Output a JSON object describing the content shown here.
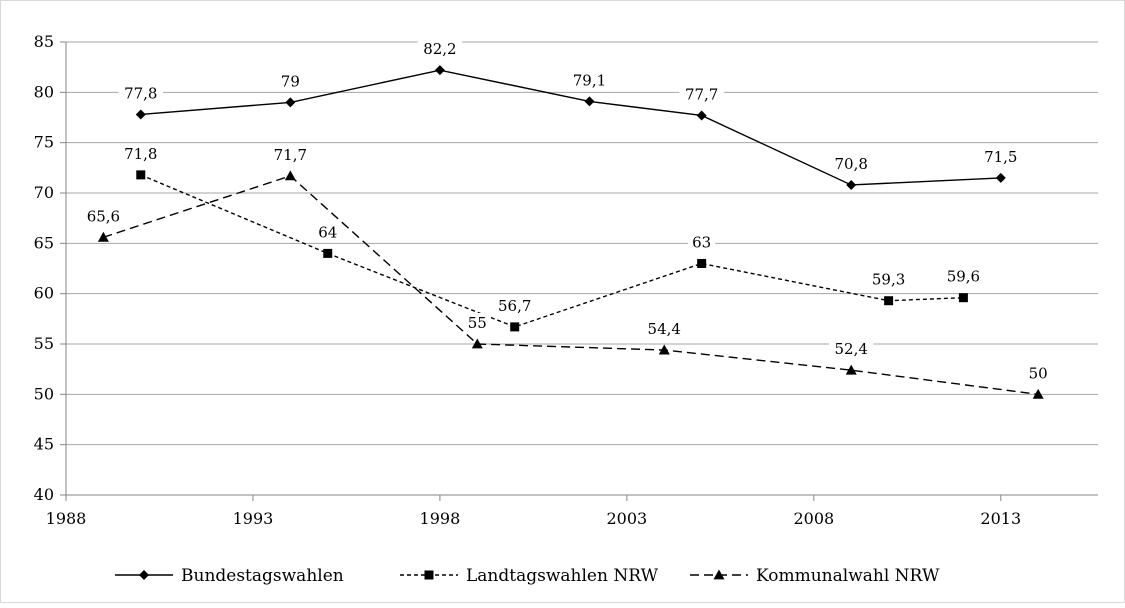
{
  "chart_data": {
    "type": "line",
    "title": "",
    "xlabel": "",
    "ylabel": "",
    "xlim": [
      1988,
      2015.6
    ],
    "ylim": [
      40,
      85
    ],
    "x_ticks": [
      "1988",
      "1993",
      "1998",
      "2003",
      "2008",
      "2013"
    ],
    "y_ticks": [
      "40",
      "45",
      "50",
      "55",
      "60",
      "65",
      "70",
      "75",
      "80",
      "85"
    ],
    "grid": "horizontal",
    "legend_position": "bottom",
    "series": [
      {
        "name": "Bundestagswahlen",
        "marker": "diamond",
        "dash": "solid",
        "points": [
          {
            "x": 1990,
            "y": 77.8,
            "label": "77,8"
          },
          {
            "x": 1994,
            "y": 79,
            "label": "79"
          },
          {
            "x": 1998,
            "y": 82.2,
            "label": "82,2"
          },
          {
            "x": 2002,
            "y": 79.1,
            "label": "79,1"
          },
          {
            "x": 2005,
            "y": 77.7,
            "label": "77,7"
          },
          {
            "x": 2009,
            "y": 70.8,
            "label": "70,8"
          },
          {
            "x": 2013,
            "y": 71.5,
            "label": "71,5"
          }
        ]
      },
      {
        "name": "Landtagswahlen NRW",
        "marker": "square",
        "dash": "short",
        "points": [
          {
            "x": 1990,
            "y": 71.8,
            "label": "71,8"
          },
          {
            "x": 1995,
            "y": 64,
            "label": "64"
          },
          {
            "x": 2000,
            "y": 56.7,
            "label": "56,7"
          },
          {
            "x": 2005,
            "y": 63,
            "label": "63"
          },
          {
            "x": 2010,
            "y": 59.3,
            "label": "59,3"
          },
          {
            "x": 2012,
            "y": 59.6,
            "label": "59,6"
          }
        ]
      },
      {
        "name": "Kommunalwahl NRW",
        "marker": "triangle",
        "dash": "long",
        "points": [
          {
            "x": 1989,
            "y": 65.6,
            "label": "65,6"
          },
          {
            "x": 1994,
            "y": 71.7,
            "label": "71,7"
          },
          {
            "x": 1999,
            "y": 55,
            "label": "55"
          },
          {
            "x": 2004,
            "y": 54.4,
            "label": "54,4"
          },
          {
            "x": 2009,
            "y": 52.4,
            "label": "52,4"
          },
          {
            "x": 2014,
            "y": 50,
            "label": "50"
          }
        ]
      }
    ]
  }
}
